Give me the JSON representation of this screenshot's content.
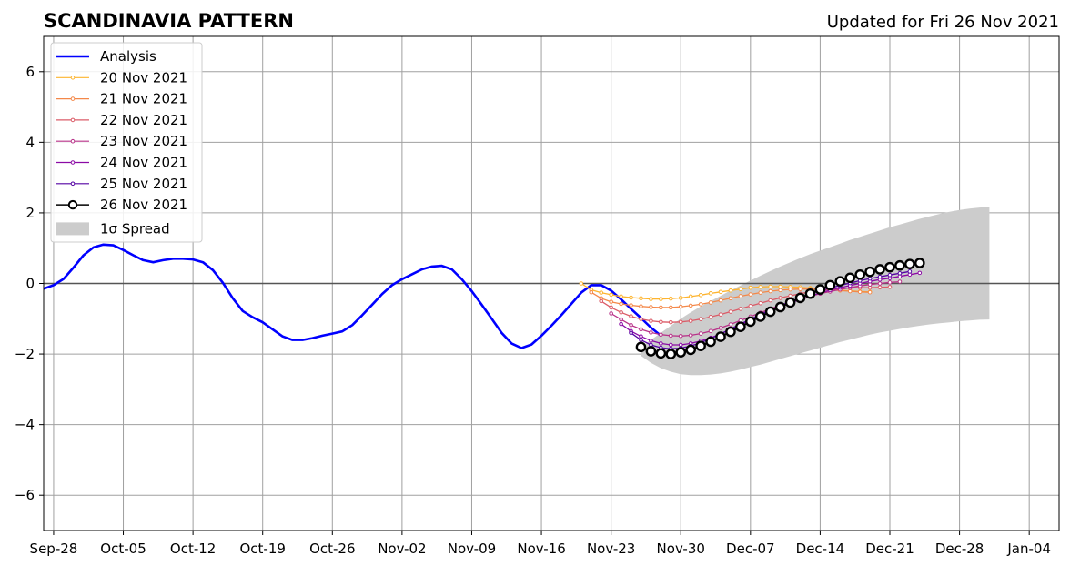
{
  "chart_data": {
    "type": "line",
    "title": "SCANDINAVIA PATTERN",
    "subtitle": "Updated for Fri 26 Nov 2021",
    "xlabel": "",
    "ylabel": "",
    "x_range": [
      "2021-09-27",
      "2022-01-07"
    ],
    "ylim": [
      -7,
      7
    ],
    "y_ticks": [
      -6,
      -4,
      -2,
      0,
      2,
      4,
      6
    ],
    "y_tick_labels": [
      "−6",
      "−4",
      "−2",
      "0",
      "2",
      "4",
      "6"
    ],
    "x_ticks": [
      "2021-09-28",
      "2021-10-05",
      "2021-10-12",
      "2021-10-19",
      "2021-10-26",
      "2021-11-02",
      "2021-11-09",
      "2021-11-16",
      "2021-11-23",
      "2021-11-30",
      "2021-12-07",
      "2021-12-14",
      "2021-12-21",
      "2021-12-28",
      "2022-01-04"
    ],
    "x_tick_labels": [
      "Sep-28",
      "Oct-05",
      "Oct-12",
      "Oct-19",
      "Oct-26",
      "Nov-02",
      "Nov-09",
      "Nov-16",
      "Nov-23",
      "Nov-30",
      "Dec-07",
      "Dec-14",
      "Dec-21",
      "Dec-28",
      "Jan-04"
    ],
    "grid": true,
    "zero_line": true,
    "legend_position": "top-left",
    "analysis": {
      "name": "Analysis",
      "color": "#0000ff",
      "start": "2021-09-27",
      "values": [
        -0.15,
        -0.05,
        0.13,
        0.45,
        0.8,
        1.02,
        1.1,
        1.08,
        0.95,
        0.8,
        0.66,
        0.6,
        0.66,
        0.7,
        0.7,
        0.68,
        0.6,
        0.38,
        0.02,
        -0.42,
        -0.78,
        -0.96,
        -1.1,
        -1.3,
        -1.5,
        -1.6,
        -1.6,
        -1.55,
        -1.48,
        -1.42,
        -1.36,
        -1.18,
        -0.9,
        -0.6,
        -0.3,
        -0.05,
        0.12,
        0.26,
        0.4,
        0.48,
        0.5,
        0.4,
        0.12,
        -0.22,
        -0.6,
        -1.0,
        -1.4,
        -1.7,
        -1.83,
        -1.73,
        -1.48,
        -1.2,
        -0.9,
        -0.58,
        -0.26,
        -0.05,
        -0.05,
        -0.2,
        -0.45,
        -0.72,
        -0.98,
        -1.25,
        -1.48
      ]
    },
    "forecasts": [
      {
        "name": "20 Nov 2021",
        "color": "#fdb42f",
        "start": "2021-11-20",
        "values": [
          0.0,
          -0.18,
          -0.26,
          -0.32,
          -0.37,
          -0.4,
          -0.42,
          -0.44,
          -0.44,
          -0.43,
          -0.41,
          -0.37,
          -0.33,
          -0.28,
          -0.24,
          -0.2,
          -0.16,
          -0.12,
          -0.1,
          -0.09,
          -0.09,
          -0.1,
          -0.11,
          -0.13,
          -0.15,
          -0.17,
          -0.19,
          -0.21,
          -0.23,
          -0.24
        ]
      },
      {
        "name": "21 Nov 2021",
        "color": "#f48849",
        "start": "2021-11-21",
        "values": [
          -0.25,
          -0.42,
          -0.52,
          -0.58,
          -0.62,
          -0.65,
          -0.67,
          -0.68,
          -0.68,
          -0.66,
          -0.63,
          -0.59,
          -0.54,
          -0.48,
          -0.42,
          -0.36,
          -0.31,
          -0.26,
          -0.22,
          -0.19,
          -0.17,
          -0.16,
          -0.16,
          -0.17,
          -0.18,
          -0.2,
          -0.22,
          -0.24,
          -0.25
        ]
      },
      {
        "name": "22 Nov 2021",
        "color": "#db5c68",
        "start": "2021-11-22",
        "values": [
          -0.5,
          -0.68,
          -0.82,
          -0.93,
          -1.01,
          -1.06,
          -1.09,
          -1.1,
          -1.09,
          -1.06,
          -1.01,
          -0.95,
          -0.88,
          -0.8,
          -0.72,
          -0.64,
          -0.56,
          -0.48,
          -0.41,
          -0.35,
          -0.29,
          -0.24,
          -0.2,
          -0.17,
          -0.15,
          -0.13,
          -0.12,
          -0.12,
          -0.11,
          -0.1
        ]
      },
      {
        "name": "23 Nov 2021",
        "color": "#b83289",
        "start": "2021-11-23",
        "values": [
          -0.85,
          -1.02,
          -1.18,
          -1.3,
          -1.39,
          -1.45,
          -1.48,
          -1.49,
          -1.47,
          -1.42,
          -1.35,
          -1.26,
          -1.16,
          -1.05,
          -0.94,
          -0.83,
          -0.72,
          -0.62,
          -0.53,
          -0.44,
          -0.36,
          -0.29,
          -0.23,
          -0.17,
          -0.12,
          -0.07,
          -0.03,
          0.0,
          0.03,
          0.05
        ]
      },
      {
        "name": "24 Nov 2021",
        "color": "#8b0aa5",
        "start": "2021-11-24",
        "values": [
          -1.15,
          -1.35,
          -1.5,
          -1.62,
          -1.7,
          -1.74,
          -1.74,
          -1.7,
          -1.63,
          -1.54,
          -1.43,
          -1.3,
          -1.17,
          -1.04,
          -0.91,
          -0.79,
          -0.67,
          -0.56,
          -0.46,
          -0.36,
          -0.27,
          -0.19,
          -0.12,
          -0.06,
          0.0,
          0.06,
          0.11,
          0.15,
          0.2,
          0.25,
          0.3
        ]
      },
      {
        "name": "25 Nov 2021",
        "color": "#5402a3",
        "start": "2021-11-25",
        "values": [
          -1.4,
          -1.6,
          -1.74,
          -1.82,
          -1.85,
          -1.83,
          -1.77,
          -1.68,
          -1.56,
          -1.43,
          -1.29,
          -1.15,
          -1.01,
          -0.88,
          -0.75,
          -0.63,
          -0.51,
          -0.4,
          -0.3,
          -0.21,
          -0.13,
          -0.06,
          0.01,
          0.08,
          0.14,
          0.19,
          0.24,
          0.29,
          0.34
        ]
      },
      {
        "name": "26 Nov 2021",
        "color": "#000000",
        "start": "2021-11-26",
        "values": [
          -1.8,
          -1.92,
          -1.98,
          -2.0,
          -1.95,
          -1.88,
          -1.77,
          -1.65,
          -1.51,
          -1.37,
          -1.23,
          -1.08,
          -0.94,
          -0.8,
          -0.67,
          -0.54,
          -0.41,
          -0.29,
          -0.17,
          -0.05,
          0.06,
          0.16,
          0.25,
          0.33,
          0.4,
          0.46,
          0.51,
          0.55,
          0.58
        ]
      }
    ],
    "spread": {
      "name": "1σ Spread",
      "color": "#cccccc",
      "start": "2021-11-26",
      "upper": [
        -1.8,
        -1.6,
        -1.4,
        -1.2,
        -1.0,
        -0.82,
        -0.65,
        -0.5,
        -0.35,
        -0.2,
        -0.06,
        0.08,
        0.22,
        0.35,
        0.48,
        0.6,
        0.72,
        0.83,
        0.93,
        1.03,
        1.13,
        1.23,
        1.32,
        1.41,
        1.5,
        1.59,
        1.67,
        1.75,
        1.83,
        1.9,
        1.97,
        2.03,
        2.08,
        2.12,
        2.15,
        2.17
      ],
      "lower": [
        -2.05,
        -2.25,
        -2.4,
        -2.5,
        -2.57,
        -2.6,
        -2.6,
        -2.58,
        -2.55,
        -2.5,
        -2.44,
        -2.37,
        -2.3,
        -2.22,
        -2.14,
        -2.06,
        -1.98,
        -1.9,
        -1.82,
        -1.74,
        -1.66,
        -1.59,
        -1.52,
        -1.45,
        -1.39,
        -1.34,
        -1.29,
        -1.24,
        -1.2,
        -1.16,
        -1.13,
        -1.1,
        -1.07,
        -1.05,
        -1.03,
        -1.02
      ]
    }
  }
}
